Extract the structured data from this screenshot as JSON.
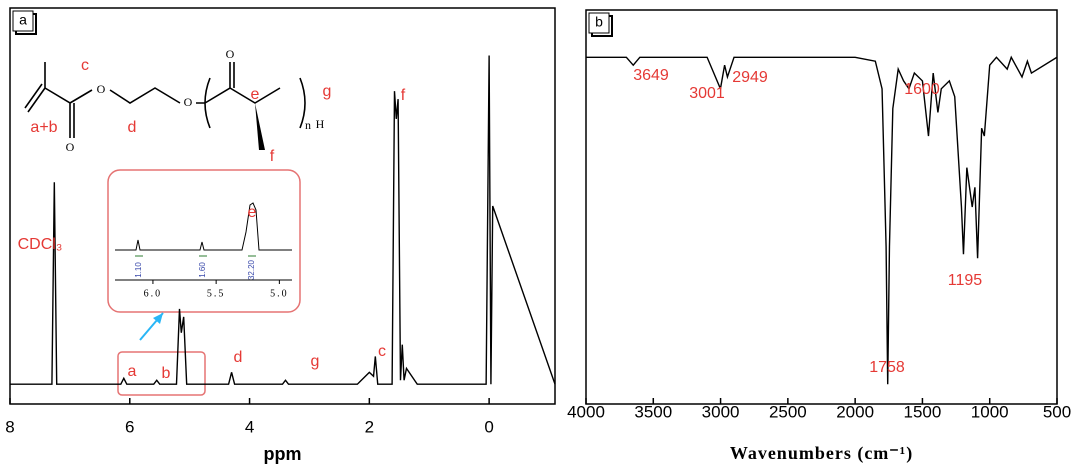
{
  "chart_data": [
    {
      "type": "line",
      "panel": "a",
      "xlabel": "ppm",
      "color": "#000000",
      "annotation_color": "#e53935",
      "xlim": [
        8,
        -1.1
      ],
      "xticks": [
        8,
        6,
        4,
        2,
        0
      ],
      "ylim": [
        0,
        100
      ],
      "x": [
        8,
        7.3,
        7.26,
        7.22,
        6.15,
        6.1,
        6.05,
        5.6,
        5.55,
        5.5,
        5.22,
        5.17,
        5.14,
        5.1,
        5.05,
        4.35,
        4.3,
        4.25,
        3.45,
        3.4,
        3.35,
        2.2,
        2.0,
        1.93,
        1.9,
        1.86,
        1.62,
        1.58,
        1.55,
        1.52,
        1.48,
        1.45,
        1.42,
        1.38,
        1.2,
        0.05,
        0.0,
        -0.03,
        -0.06,
        -1.1
      ],
      "values": [
        5,
        5,
        56,
        5,
        5,
        6.5,
        5,
        5,
        6,
        5,
        5,
        24,
        18,
        22,
        5,
        5,
        8,
        5,
        5,
        6,
        5,
        5,
        8,
        7,
        12,
        5,
        5,
        79,
        72,
        77,
        6,
        15,
        6,
        9,
        5,
        5,
        88,
        5,
        50,
        5
      ],
      "annotations": [
        "CDCl₃",
        "a",
        "b",
        "d",
        "g",
        "c",
        "f"
      ],
      "structure_labels": [
        "c",
        "a+b",
        "d",
        "e",
        "f",
        "g",
        "O",
        "O",
        "O",
        "O",
        "n",
        "H"
      ],
      "inset": {
        "label": "e",
        "xticks": [
          {
            "value": 6,
            "label": "6.0"
          },
          5.5,
          {
            "value": 5,
            "label": "5.0"
          }
        ],
        "integrals": [
          "1.10",
          "1.60",
          "32.20"
        ]
      }
    },
    {
      "type": "line",
      "panel": "b",
      "xlabel": "Wavenumbers (cm⁻¹)",
      "color": "#000000",
      "annotation_color": "#e53935",
      "xlim": [
        4000,
        500
      ],
      "xticks": [
        4000,
        3500,
        3000,
        2500,
        2000,
        1500,
        1000,
        500
      ],
      "ylim": [
        0,
        100
      ],
      "x": [
        4000,
        3700,
        3649,
        3600,
        3100,
        3001,
        2970,
        2949,
        2900,
        2400,
        2000,
        1850,
        1800,
        1770,
        1758,
        1745,
        1720,
        1680,
        1640,
        1600,
        1560,
        1500,
        1455,
        1420,
        1385,
        1360,
        1300,
        1260,
        1210,
        1195,
        1170,
        1130,
        1110,
        1090,
        1060,
        1040,
        1000,
        950,
        870,
        840,
        760,
        720,
        690,
        500
      ],
      "values": [
        88,
        88,
        86,
        88,
        88,
        80,
        86,
        83,
        88,
        88,
        88,
        87,
        80,
        40,
        5,
        40,
        75,
        85,
        82,
        80,
        84,
        82,
        68,
        84,
        74,
        80,
        82,
        78,
        50,
        38,
        60,
        50,
        55,
        37,
        70,
        68,
        86,
        88,
        85,
        88,
        83,
        87,
        84,
        88
      ],
      "annotations": [
        "3649",
        "3001",
        "2949",
        "1600",
        "1758",
        "1195"
      ]
    }
  ]
}
